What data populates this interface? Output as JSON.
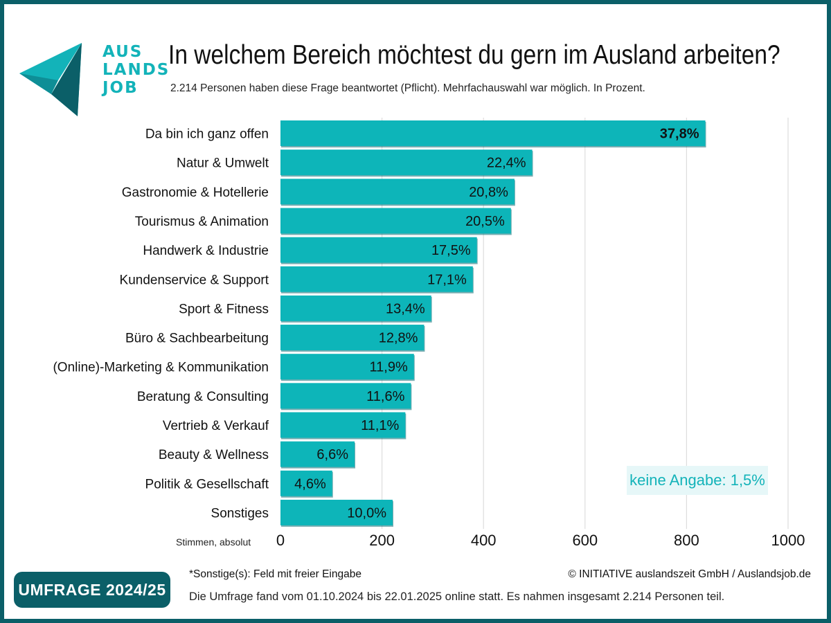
{
  "brand": {
    "logo_lines": [
      "AUS",
      "LANDS",
      "JOB"
    ],
    "colors": {
      "dark_teal": "#0b5f68",
      "teal": "#13b3b9",
      "bar": "#0db5b9",
      "grid": "#dddddd"
    }
  },
  "title": "In welchem Bereich möchtest du gern im Ausland arbeiten?",
  "subtitle": "2.214 Personen haben diese Frage beantwortet (Pflicht). Mehrfachauswahl war möglich. In Prozent.",
  "chart_data": {
    "type": "bar",
    "orientation": "horizontal",
    "categories": [
      "Da bin ich ganz offen",
      "Natur & Umwelt",
      "Gastronomie & Hotellerie",
      "Tourismus & Animation",
      "Handwerk & Industrie",
      "Kundenservice & Support",
      "Sport & Fitness",
      "Büro & Sachbearbeitung",
      "(Online)-Marketing & Kommunikation",
      "Beratung & Consulting",
      "Vertrieb & Verkauf",
      "Beauty & Wellness",
      "Politik & Gesellschaft",
      "Sonstiges"
    ],
    "values": [
      837,
      496,
      461,
      454,
      387,
      379,
      297,
      283,
      263,
      257,
      246,
      146,
      102,
      221
    ],
    "value_labels": [
      "37,8%",
      "22,4%",
      "20,8%",
      "20,5%",
      "17,5%",
      "17,1%",
      "13,4%",
      "12,8%",
      "11,9%",
      "11,6%",
      "11,1%",
      "6,6%",
      "4,6%",
      "10,0%"
    ],
    "xlabel": "Stimmen, absolut",
    "xlim": [
      0,
      1000
    ],
    "xticks": [
      0,
      200,
      400,
      600,
      800,
      1000
    ],
    "grid": true,
    "bar_color": "#0db5b9",
    "annotation": "keine Angabe: 1,5%"
  },
  "badge": "UMFRAGE 2024/25",
  "footnote": "*Sonstige(s): Feld mit freier Eingabe",
  "copyright": "© INITIATIVE auslandszeit GmbH / Auslandsjob.de",
  "survey_info": "Die Umfrage fand vom 01.10.2024 bis 22.01.2025 online statt. Es nahmen insgesamt 2.214 Personen teil."
}
